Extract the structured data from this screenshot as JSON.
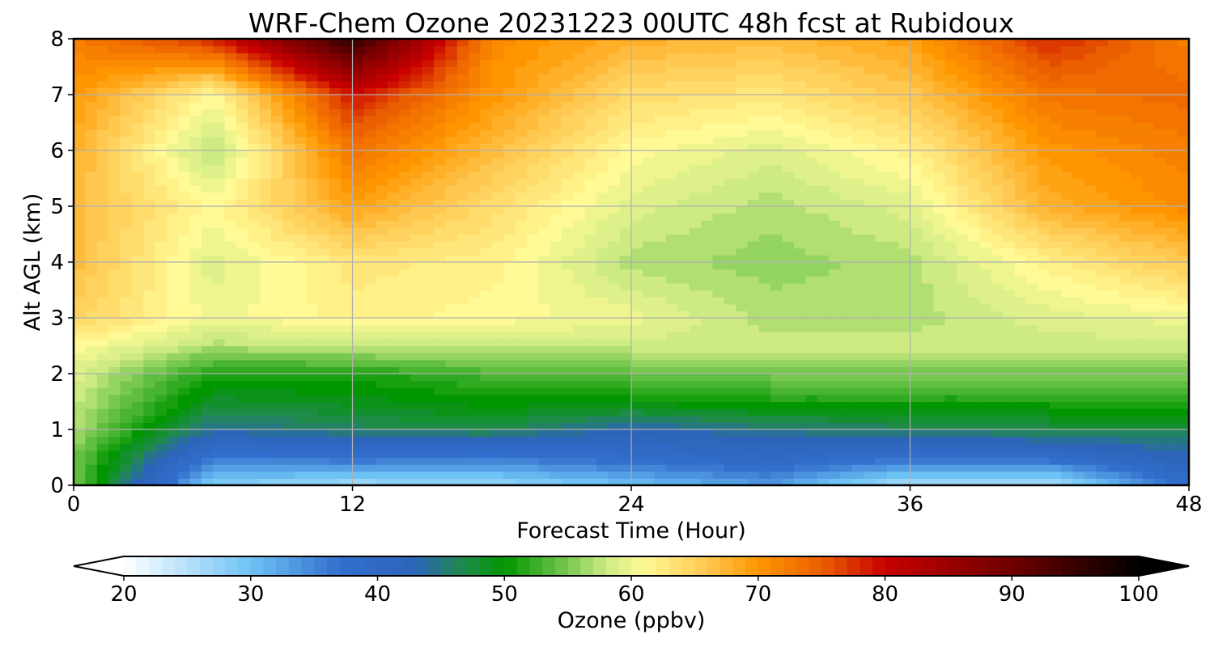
{
  "chart_data": {
    "type": "heatmap",
    "title": "WRF-Chem Ozone  20231223 00UTC 48h fcst at Rubidoux",
    "xlabel": "Forecast Time (Hour)",
    "ylabel": "Alt AGL (km)",
    "xlim": [
      0,
      48
    ],
    "ylim": [
      0,
      8
    ],
    "xticks": [
      "0",
      "12",
      "24",
      "36",
      "48"
    ],
    "yticks": [
      "0",
      "1",
      "2",
      "3",
      "4",
      "5",
      "6",
      "7",
      "8"
    ],
    "grid": true,
    "x_hours": [
      0,
      6,
      12,
      18,
      24,
      30,
      36,
      42,
      48
    ],
    "y_km": [
      0,
      0.5,
      1,
      1.5,
      2,
      2.5,
      3,
      4,
      5,
      6,
      7,
      8
    ],
    "values_ppbv": [
      [
        55,
        28,
        26,
        27,
        30,
        33,
        25,
        25,
        38
      ],
      [
        55,
        36,
        37,
        36,
        38,
        40,
        37,
        38,
        43
      ],
      [
        57,
        44,
        46,
        47,
        43,
        45,
        46,
        47,
        47
      ],
      [
        58,
        48,
        49,
        50,
        50,
        51,
        51,
        51,
        52
      ],
      [
        59,
        51,
        51,
        53,
        54,
        55,
        55,
        55,
        55
      ],
      [
        61,
        57,
        58,
        58,
        58,
        58,
        58,
        58,
        58
      ],
      [
        65,
        60,
        62,
        61,
        60,
        57,
        57,
        59,
        60
      ],
      [
        67,
        59,
        63,
        62,
        57,
        56,
        57,
        62,
        66
      ],
      [
        67,
        61,
        69,
        64,
        59,
        57,
        59,
        68,
        71
      ],
      [
        68,
        57,
        73,
        67,
        61,
        59,
        62,
        70,
        72
      ],
      [
        70,
        61,
        79,
        70,
        64,
        63,
        66,
        73,
        74
      ],
      [
        72,
        78,
        96,
        71,
        68,
        67,
        69,
        78,
        72
      ]
    ],
    "colorbar": {
      "label": "Ozone  (ppbv)",
      "min": 20,
      "max": 100,
      "ticks": [
        "20",
        "30",
        "40",
        "50",
        "60",
        "70",
        "80",
        "90",
        "100"
      ],
      "extend": "both"
    }
  }
}
